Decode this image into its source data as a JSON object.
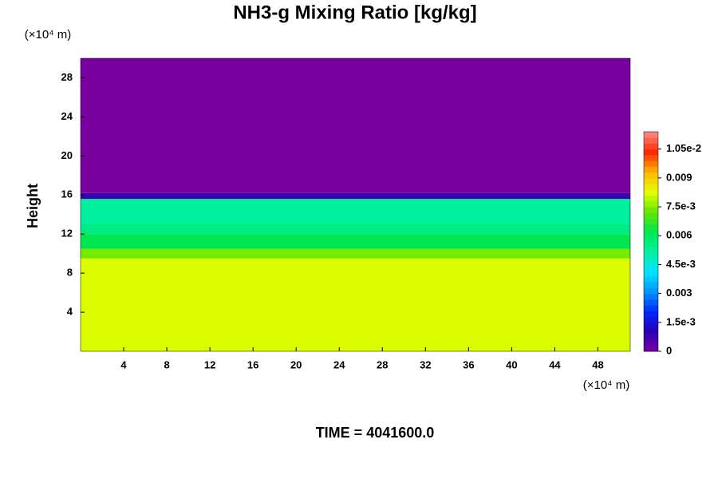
{
  "chart_data": {
    "type": "heatmap",
    "title": "NH3-g Mixing Ratio [kg/kg]",
    "ylabel": "Height",
    "y_unit": "(×10⁴ m)",
    "x_unit": "(×10⁴ m)",
    "footer": "TIME = 4041600.0",
    "xlim": [
      0,
      51
    ],
    "ylim": [
      0,
      30
    ],
    "xticks": [
      4,
      8,
      12,
      16,
      20,
      24,
      28,
      32,
      36,
      40,
      44,
      48
    ],
    "yticks": [
      4,
      8,
      12,
      16,
      20,
      24,
      28
    ],
    "y_edges": [
      0,
      9.5,
      10.5,
      12,
      13,
      15.6,
      16.2,
      30
    ],
    "values": [
      0.0082,
      0.0074,
      0.0062,
      0.0056,
      0.0052,
      0.0008,
      0
    ],
    "clim": [
      0,
      0.0114
    ],
    "colormap": [
      "#7800a0",
      "#2800b4",
      "#0028ff",
      "#0096ff",
      "#00e6ff",
      "#00f0a0",
      "#00e650",
      "#64e600",
      "#e6ff00",
      "#ffb400",
      "#ff2800",
      "#ff8c8c"
    ],
    "cticks": [
      0,
      {
        "value": 0.0015,
        "label": "1.5e-3"
      },
      0.003,
      {
        "value": 0.0045,
        "label": "4.5e-3"
      },
      0.006,
      {
        "value": 0.0075,
        "label": "7.5e-3"
      },
      0.009,
      {
        "value": 0.0105,
        "label": "1.05e-2"
      }
    ]
  }
}
